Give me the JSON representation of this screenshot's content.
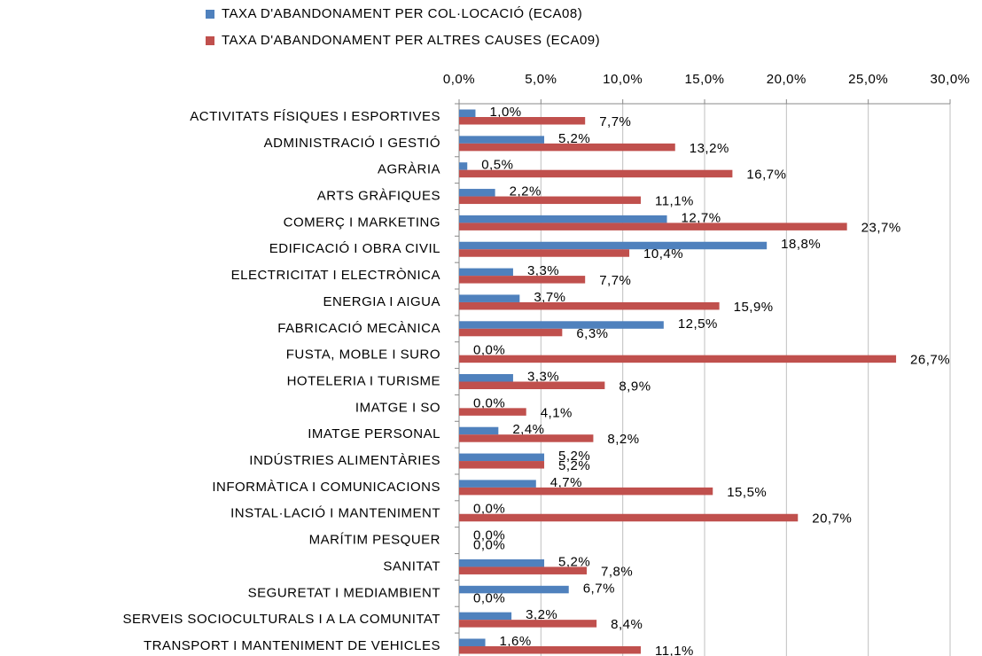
{
  "chart_data": {
    "type": "bar",
    "orientation": "horizontal",
    "categories": [
      "ACTIVITATS FÍSIQUES I ESPORTIVES",
      "ADMINISTRACIÓ I GESTIÓ",
      "AGRÀRIA",
      "ARTS GRÀFIQUES",
      "COMERÇ I MARKETING",
      "EDIFICACIÓ I OBRA CIVIL",
      "ELECTRICITAT I ELECTRÒNICA",
      "ENERGIA I AIGUA",
      "FABRICACIÓ MECÀNICA",
      "FUSTA, MOBLE I SURO",
      "HOTELERIA I TURISME",
      "IMATGE I SO",
      "IMATGE PERSONAL",
      "INDÚSTRIES ALIMENTÀRIES",
      "INFORMÀTICA I COMUNICACIONS",
      "INSTAL·LACIÓ I MANTENIMENT",
      "MARÍTIM PESQUER",
      "SANITAT",
      "SEGURETAT I MEDIAMBIENT",
      "SERVEIS SOCIOCULTURALS I A LA COMUNITAT",
      "TRANSPORT I MANTENIMENT DE VEHICLES"
    ],
    "series": [
      {
        "name": "TAXA D'ABANDONAMENT PER COL·LOCACIÓ (ECA08)",
        "color": "#4f81bd",
        "values": [
          1.0,
          5.2,
          0.5,
          2.2,
          12.7,
          18.8,
          3.3,
          3.7,
          12.5,
          0.0,
          3.3,
          0.0,
          2.4,
          5.2,
          4.7,
          0.0,
          0.0,
          5.2,
          6.7,
          3.2,
          1.6
        ],
        "value_labels": [
          "1,0%",
          "5,2%",
          "0,5%",
          "2,2%",
          "12,7%",
          "18,8%",
          "3,3%",
          "3,7%",
          "12,5%",
          "0,0%",
          "3,3%",
          "0,0%",
          "2,4%",
          "5,2%",
          "4,7%",
          "0,0%",
          "0,0%",
          "5,2%",
          "6,7%",
          "3,2%",
          "1,6%"
        ]
      },
      {
        "name": "TAXA D'ABANDONAMENT PER ALTRES CAUSES (ECA09)",
        "color": "#c0504d",
        "values": [
          7.7,
          13.2,
          16.7,
          11.1,
          23.7,
          10.4,
          7.7,
          15.9,
          6.3,
          26.7,
          8.9,
          4.1,
          8.2,
          5.2,
          15.5,
          20.7,
          0.0,
          7.8,
          0.0,
          8.4,
          11.1
        ],
        "value_labels": [
          "7,7%",
          "13,2%",
          "16,7%",
          "11,1%",
          "23,7%",
          "10,4%",
          "7,7%",
          "15,9%",
          "6,3%",
          "26,7%",
          "8,9%",
          "4,1%",
          "8,2%",
          "5,2%",
          "15,5%",
          "20,7%",
          "0,0%",
          "7,8%",
          "0,0%",
          "8,4%",
          "11,1%"
        ]
      }
    ],
    "xlim": [
      0,
      30
    ],
    "xticks": [
      {
        "value": 0,
        "label": "0,0%"
      },
      {
        "value": 5,
        "label": "5,0%"
      },
      {
        "value": 10,
        "label": "10,0%"
      },
      {
        "value": 15,
        "label": "15,0%"
      },
      {
        "value": 20,
        "label": "20,0%"
      },
      {
        "value": 25,
        "label": "25,0%"
      },
      {
        "value": 30,
        "label": "30,0%"
      }
    ],
    "grid": true,
    "legend": "top"
  }
}
